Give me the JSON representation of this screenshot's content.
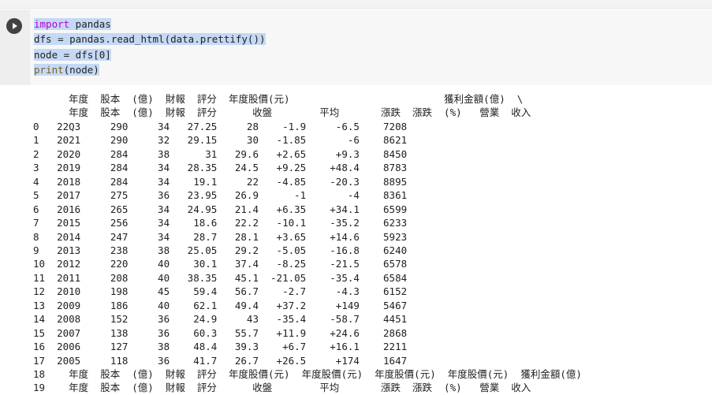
{
  "cell": {
    "code_lines": [
      {
        "parts": [
          {
            "cls": "kw",
            "text": "import"
          },
          {
            "cls": "",
            "text": " pandas"
          }
        ]
      },
      {
        "parts": [
          {
            "cls": "",
            "text": "dfs = pandas.read_html(data.prettify())"
          }
        ]
      },
      {
        "parts": [
          {
            "cls": "",
            "text": "node = dfs[0]"
          }
        ]
      },
      {
        "parts": [
          {
            "cls": "fn",
            "text": "print"
          },
          {
            "cls": "",
            "text": "(node)"
          }
        ]
      }
    ]
  },
  "output": {
    "lines": [
      "      年度  股本  (億)  財報  評分  年度股價(元)                          獲利金額(億)  \\",
      "      年度  股本  (億)  財報  評分      收盤        平均       漲跌  漲跌  (%)   營業  收入",
      "0   22Q3     290     34   27.25     28    -1.9     -6.5    7208",
      "1   2021     290     32   29.15     30   -1.85       -6    8621",
      "2   2020     284     38      31   29.6   +2.65     +9.3    8450",
      "3   2019     284     34   28.35   24.5   +9.25    +48.4    8783",
      "4   2018     284     34    19.1     22   -4.85    -20.3    8895",
      "5   2017     275     36   23.95   26.9      -1       -4    8361",
      "6   2016     265     34   24.95   21.4   +6.35    +34.1    6599",
      "7   2015     256     34    18.6   22.2   -10.1    -35.2    6233",
      "8   2014     247     34    28.7   28.1   +3.65    +14.6    5923",
      "9   2013     238     38   25.05   29.2   -5.05    -16.8    6240",
      "10  2012     220     40    30.1   37.4   -8.25    -21.5    6578",
      "11  2011     208     40   38.35   45.1  -21.05    -35.4    6584",
      "12  2010     198     45    59.4   56.7    -2.7     -4.3    6152",
      "13  2009     186     40    62.1   49.4   +37.2     +149    5467",
      "14  2008     152     36    24.9     43   -35.4    -58.7    4451",
      "15  2007     138     36    60.3   55.7   +11.9    +24.6    2868",
      "16  2006     127     38    48.4   39.3    +6.7    +16.1    2211",
      "17  2005     118     36    41.7   26.7   +26.5     +174    1647",
      "18    年度  股本  (億)  財報  評分  年度股價(元)  年度股價(元)  年度股價(元)  年度股價(元)  獲利金額(億)",
      "19    年度  股本  (億)  財報  評分      收盤        平均       漲跌  漲跌  (%)   營業  收入"
    ]
  }
}
